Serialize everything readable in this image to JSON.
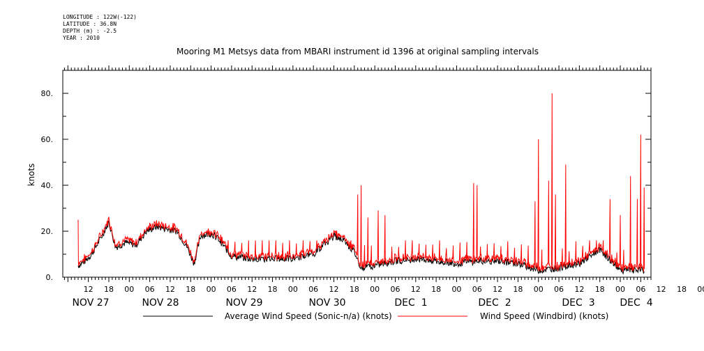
{
  "header": {
    "longitude": "LONGITUDE : 122W(-122)",
    "latitude": "LATITUDE : 36.8N",
    "depth": "DEPTH (m) : -2.5",
    "year": "YEAR : 2010"
  },
  "chart_data": {
    "type": "line",
    "title": "Mooring M1 Metsys data from MBARI instrument id 1396 at original sampling intervals",
    "ylabel": "knots",
    "ylim": [
      0,
      90
    ],
    "yticks": [
      "0.",
      "20.",
      "40.",
      "60.",
      "80."
    ],
    "x_hour_ticks": [
      "12",
      "18",
      "00",
      "06",
      "12",
      "18",
      "00",
      "06",
      "12",
      "18",
      "00",
      "06",
      "12",
      "18",
      "00",
      "06",
      "12",
      "18",
      "00",
      "06",
      "12",
      "18",
      "00",
      "06",
      "12",
      "18",
      "00",
      "06",
      "12",
      "18",
      "00",
      "06"
    ],
    "x_date_labels": [
      "NOV 27",
      "NOV 28",
      "NOV 29",
      "NOV 30",
      "DEC  1",
      "DEC  2",
      "DEC  3",
      "DEC  4"
    ],
    "legend": [
      "Average Wind Speed (Sonic-n/a) (knots)",
      "Wind Speed (Windbird) (knots)"
    ],
    "colors": {
      "avg": "#000000",
      "windbird": "#ff0000"
    },
    "series": [
      {
        "name": "Average Wind Speed (Sonic-n/a) (knots)",
        "color": "#000000",
        "anchors": [
          [
            "2010-11-26T09:00",
            5
          ],
          [
            "2010-11-26T11:00",
            7
          ],
          [
            "2010-11-26T13:00",
            10
          ],
          [
            "2010-11-26T16:00",
            18
          ],
          [
            "2010-11-26T18:00",
            24
          ],
          [
            "2010-11-26T20:00",
            13
          ],
          [
            "2010-11-26T23:00",
            15
          ],
          [
            "2010-11-27T02:00",
            14
          ],
          [
            "2010-11-27T05:00",
            20
          ],
          [
            "2010-11-27T08:00",
            22
          ],
          [
            "2010-11-27T11:00",
            21
          ],
          [
            "2010-11-27T14:00",
            20
          ],
          [
            "2010-11-27T17:00",
            13
          ],
          [
            "2010-11-27T19:00",
            6
          ],
          [
            "2010-11-27T21:00",
            18
          ],
          [
            "2010-11-28T00:00",
            19
          ],
          [
            "2010-11-28T02:00",
            17
          ],
          [
            "2010-11-28T06:00",
            9
          ],
          [
            "2010-11-28T12:00",
            8
          ],
          [
            "2010-11-28T18:00",
            8
          ],
          [
            "2010-11-29T00:00",
            8
          ],
          [
            "2010-11-29T06:00",
            10
          ],
          [
            "2010-11-29T12:00",
            18
          ],
          [
            "2010-11-29T15:00",
            16
          ],
          [
            "2010-11-29T18:00",
            11
          ],
          [
            "2010-11-29T20:00",
            4
          ],
          [
            "2010-11-30T00:00",
            5
          ],
          [
            "2010-11-30T06:00",
            7
          ],
          [
            "2010-11-30T12:00",
            8
          ],
          [
            "2010-11-30T18:00",
            7
          ],
          [
            "2010-12-01T00:00",
            6
          ],
          [
            "2010-12-01T06:00",
            7
          ],
          [
            "2010-12-01T12:00",
            7
          ],
          [
            "2010-12-01T18:00",
            6
          ],
          [
            "2010-12-02T00:00",
            3
          ],
          [
            "2010-12-02T06:00",
            4
          ],
          [
            "2010-12-02T12:00",
            6
          ],
          [
            "2010-12-02T18:00",
            12
          ],
          [
            "2010-12-03T00:00",
            3
          ],
          [
            "2010-12-03T06:00",
            3
          ],
          [
            "2010-12-03T07:00",
            3
          ]
        ]
      },
      {
        "name": "Wind Speed (Windbird) (knots)",
        "color": "#ff0000",
        "spike_period_hours": 2,
        "spikes": [
          [
            "2010-11-26T09:00",
            25
          ],
          [
            "2010-11-29T19:00",
            36
          ],
          [
            "2010-11-29T20:00",
            40
          ],
          [
            "2010-11-29T22:00",
            26
          ],
          [
            "2010-11-30T01:00",
            29
          ],
          [
            "2010-11-30T03:00",
            27
          ],
          [
            "2010-12-01T05:00",
            41
          ],
          [
            "2010-12-01T06:00",
            40
          ],
          [
            "2010-12-01T23:00",
            33
          ],
          [
            "2010-12-02T00:00",
            60
          ],
          [
            "2010-12-02T03:00",
            42
          ],
          [
            "2010-12-02T04:00",
            80
          ],
          [
            "2010-12-02T05:00",
            36
          ],
          [
            "2010-12-02T08:00",
            49
          ],
          [
            "2010-12-02T21:00",
            34
          ],
          [
            "2010-12-03T00:00",
            27
          ],
          [
            "2010-12-03T03:00",
            44
          ],
          [
            "2010-12-03T05:00",
            34
          ],
          [
            "2010-12-03T06:00",
            62
          ],
          [
            "2010-12-03T07:00",
            39
          ]
        ]
      }
    ]
  }
}
